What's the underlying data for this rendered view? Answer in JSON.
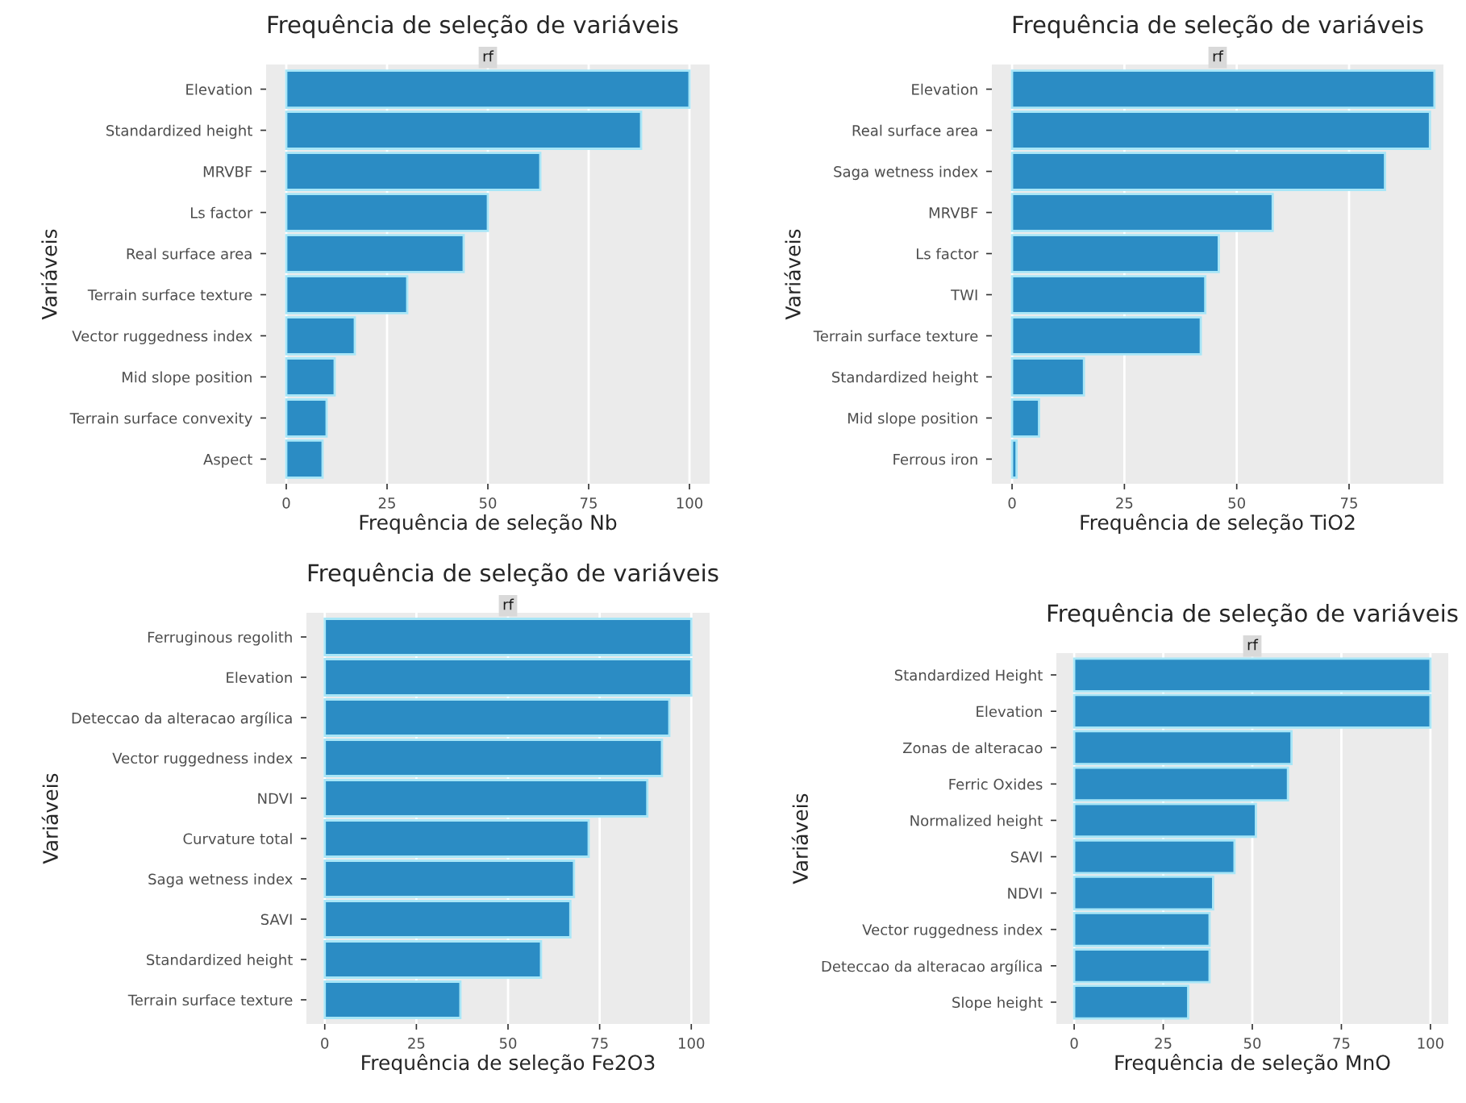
{
  "chart_data": [
    {
      "type": "bar",
      "orientation": "horizontal",
      "title": "Frequência de seleção de variáveis",
      "subtitle": "rf",
      "xlabel": "Frequência de seleção Nb",
      "ylabel": "Variáveis",
      "grid": "x",
      "legend": false,
      "categories": [
        "Elevation",
        "Standardized height",
        "MRVBF",
        "Ls factor",
        "Real surface area",
        "Terrain surface texture",
        "Vector ruggedness index",
        "Mid slope position",
        "Terrain surface convexity",
        "Aspect"
      ],
      "series": [
        {
          "color": "#2b8cc4",
          "values": [
            100,
            88,
            63,
            50,
            44,
            30,
            17,
            12,
            10,
            9
          ]
        }
      ],
      "xlim": [
        -5,
        105
      ],
      "xticks": [
        0,
        25,
        50,
        75,
        100
      ]
    },
    {
      "type": "bar",
      "orientation": "horizontal",
      "title": "Frequência de seleção de variáveis",
      "subtitle": "rf",
      "xlabel": "Frequência de seleção TiO2",
      "ylabel": "Variáveis",
      "grid": "x",
      "legend": false,
      "categories": [
        "Elevation",
        "Real surface area",
        "Saga wetness index",
        "MRVBF",
        "Ls factor",
        "TWI",
        "Terrain surface texture",
        "Standardized height",
        "Mid slope position",
        "Ferrous iron"
      ],
      "series": [
        {
          "color": "#2b8cc4",
          "values": [
            94,
            93,
            83,
            58,
            46,
            43,
            42,
            16,
            6,
            1
          ]
        }
      ],
      "xlim": [
        -4.5,
        96
      ],
      "xticks": [
        0,
        25,
        50,
        75
      ]
    },
    {
      "type": "bar",
      "orientation": "horizontal",
      "title": "Frequência de seleção de variáveis",
      "subtitle": "rf",
      "xlabel": "Frequência de seleção Fe2O3",
      "ylabel": "Variáveis",
      "grid": "x",
      "legend": false,
      "categories": [
        "Ferruginous regolith",
        "Elevation",
        "Deteccao da alteracao argílica",
        "Vector ruggedness index",
        "NDVI",
        "Curvature total",
        "Saga wetness index",
        "SAVI",
        "Standardized height",
        "Terrain surface texture"
      ],
      "series": [
        {
          "color": "#2b8cc4",
          "values": [
            100,
            100,
            94,
            92,
            88,
            72,
            68,
            67,
            59,
            37
          ]
        }
      ],
      "xlim": [
        -5,
        105
      ],
      "xticks": [
        0,
        25,
        50,
        75,
        100
      ]
    },
    {
      "type": "bar",
      "orientation": "horizontal",
      "title": "Frequência de seleção de variáveis",
      "subtitle": "rf",
      "xlabel": "Frequência de seleção MnO",
      "ylabel": "Variáveis",
      "grid": "x",
      "legend": false,
      "categories": [
        "Standardized Height",
        "Elevation",
        "Zonas de alteracao",
        "Ferric Oxides",
        "Normalized height",
        "SAVI",
        "NDVI",
        "Vector ruggedness index",
        "Deteccao da alteracao argílica",
        "Slope height"
      ],
      "series": [
        {
          "color": "#2b8cc4",
          "values": [
            100,
            100,
            61,
            60,
            51,
            45,
            39,
            38,
            38,
            32
          ]
        }
      ],
      "xlim": [
        -5,
        105
      ],
      "xticks": [
        0,
        25,
        50,
        75,
        100
      ]
    }
  ]
}
